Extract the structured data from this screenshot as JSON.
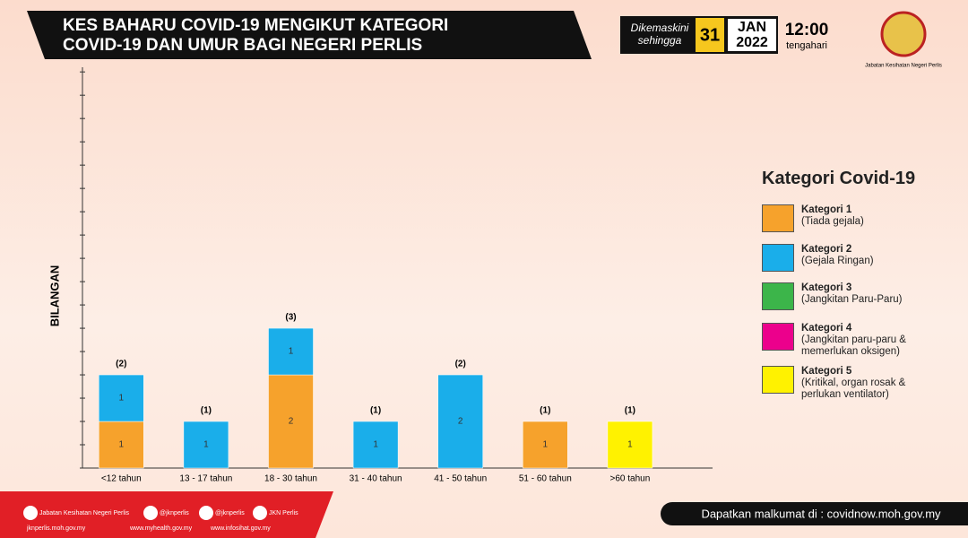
{
  "header": {
    "title_lines": [
      "KES BAHARU COVID-19 MENGIKUT KATEGORI",
      "COVID-19 DAN UMUR BAGI NEGERI PERLIS"
    ],
    "updated": [
      "Dikemaskini",
      "sehingga"
    ],
    "day": "31",
    "month": "JAN",
    "year": "2022",
    "time": "12:00",
    "time_note": "tengahari",
    "agency": "Jabatan Kesihatan Negeri Perlis"
  },
  "chart_data": {
    "type": "stacked_bar",
    "ylabel": "BILANGAN",
    "categories": [
      "<12 tahun",
      "13 - 17 tahun",
      "18 - 30 tahun",
      "31 - 40 tahun",
      "41 - 50 tahun",
      "51 - 60 tahun",
      ">60 tahun"
    ],
    "series": [
      {
        "name": "Kategori 1",
        "description": "(Tiada gejala)",
        "color": "#f6a22c",
        "values": [
          1,
          null,
          2,
          null,
          null,
          1,
          null
        ]
      },
      {
        "name": "Kategori 2",
        "description": "(Gejala Ringan)",
        "color": "#1aaeea",
        "values": [
          1,
          1,
          1,
          1,
          2,
          null,
          null
        ]
      },
      {
        "name": "Kategori 3",
        "description": "(Jangkitan Paru-Paru)",
        "color": "#3cb54a",
        "values": [
          null,
          null,
          null,
          null,
          null,
          null,
          null
        ]
      },
      {
        "name": "Kategori 4",
        "description": "(Jangkitan paru-paru & memerlukan oksigen)",
        "color": "#ec008c",
        "values": [
          null,
          null,
          null,
          null,
          null,
          null,
          null
        ]
      },
      {
        "name": "Kategori 5",
        "description": "(Kritikal, organ rosak & perlukan ventilator)",
        "color": "#fff200",
        "values": [
          null,
          null,
          null,
          null,
          null,
          null,
          1
        ]
      }
    ],
    "totals": [
      2,
      1,
      3,
      1,
      2,
      1,
      1
    ],
    "total_labels": [
      "(2)",
      "(1)",
      "(3)",
      "(1)",
      "(2)",
      "(1)",
      "(1)"
    ],
    "legend_title": "Kategori Covid-19",
    "ylim": [
      0,
      8.6
    ],
    "yticks": [
      0,
      0.5,
      1,
      1.5,
      2,
      2.5,
      3,
      3.5,
      4,
      4.5,
      5,
      5.5,
      6,
      6.5,
      7,
      7.5,
      8,
      8.5
    ]
  },
  "footer": {
    "social": [
      "Jabatan Kesihatan Negeri Perlis",
      "@jknperlis",
      "@jknperlis",
      "JKN Perlis"
    ],
    "sites": [
      "jknperlis.moh.gov.my",
      "www.myhealth.gov.my",
      "www.infosihat.gov.my"
    ],
    "info": "Dapatkan malkumat di : covidnow.moh.gov.my"
  }
}
